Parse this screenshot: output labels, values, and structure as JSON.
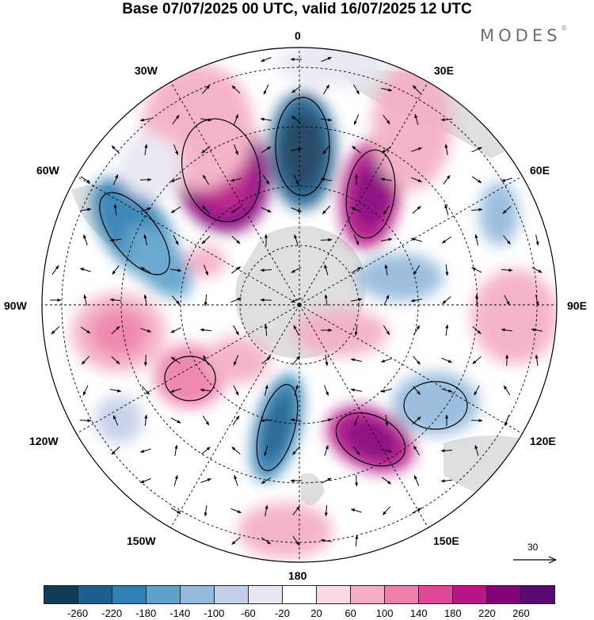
{
  "title": "Base 07/07/2025 00 UTC, valid 16/07/2025 12 UTC",
  "logo": "MODES",
  "logo_mark": "©",
  "longitude_labels": {
    "lon_0": "0",
    "lon_30E": "30E",
    "lon_60E": "60E",
    "lon_90E": "90E",
    "lon_120E": "120E",
    "lon_150E": "150E",
    "lon_180": "180",
    "lon_150W": "150W",
    "lon_120W": "120W",
    "lon_90W": "90W",
    "lon_60W": "60W",
    "lon_30W": "30W"
  },
  "reference_vector": "30",
  "colorbar": {
    "ticks": [
      "-260",
      "-220",
      "-180",
      "-140",
      "-100",
      "-60",
      "-20",
      "20",
      "60",
      "100",
      "140",
      "180",
      "220",
      "260"
    ],
    "colors": [
      "#123b5a",
      "#1d5f8e",
      "#2f80b5",
      "#5ea1cb",
      "#93b9dc",
      "#c3cfe8",
      "#e7e7f3",
      "#ffffff",
      "#f9d9e1",
      "#f4aec4",
      "#ee7eaa",
      "#df4896",
      "#b81586",
      "#84037a",
      "#5a0a73"
    ]
  },
  "map": {
    "projection": "south-polar-stereographic",
    "field": "anomaly shaded with wind vectors",
    "land_color": "#dcdcdc"
  }
}
